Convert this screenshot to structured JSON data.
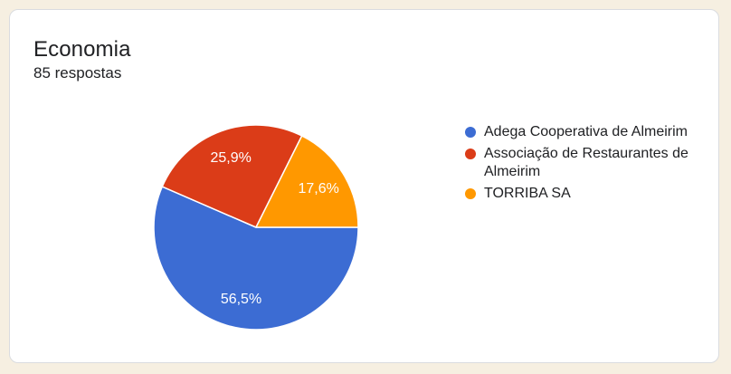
{
  "card": {
    "title": "Economia",
    "response_count": "85 respostas"
  },
  "chart_data": {
    "type": "pie",
    "title": "Economia",
    "total_responses_text": "85 respostas",
    "categories": [
      "Adega Cooperativa de Almeirim",
      "Associação de Restaurantes de Almeirim",
      "TORRIBA SA"
    ],
    "values": [
      56.5,
      25.9,
      17.6
    ],
    "labels": [
      "56,5%",
      "25,9%",
      "17,6%"
    ],
    "colors": [
      "#3c6cd3",
      "#db3c18",
      "#ff9800"
    ],
    "legend_position": "right",
    "slice_border_color": "#ffffff"
  },
  "colors": {
    "page_background": "#f6efe1",
    "card_background": "#ffffff",
    "card_border": "#dadce0",
    "text": "#202124",
    "slice_label_text": "#ffffff"
  }
}
